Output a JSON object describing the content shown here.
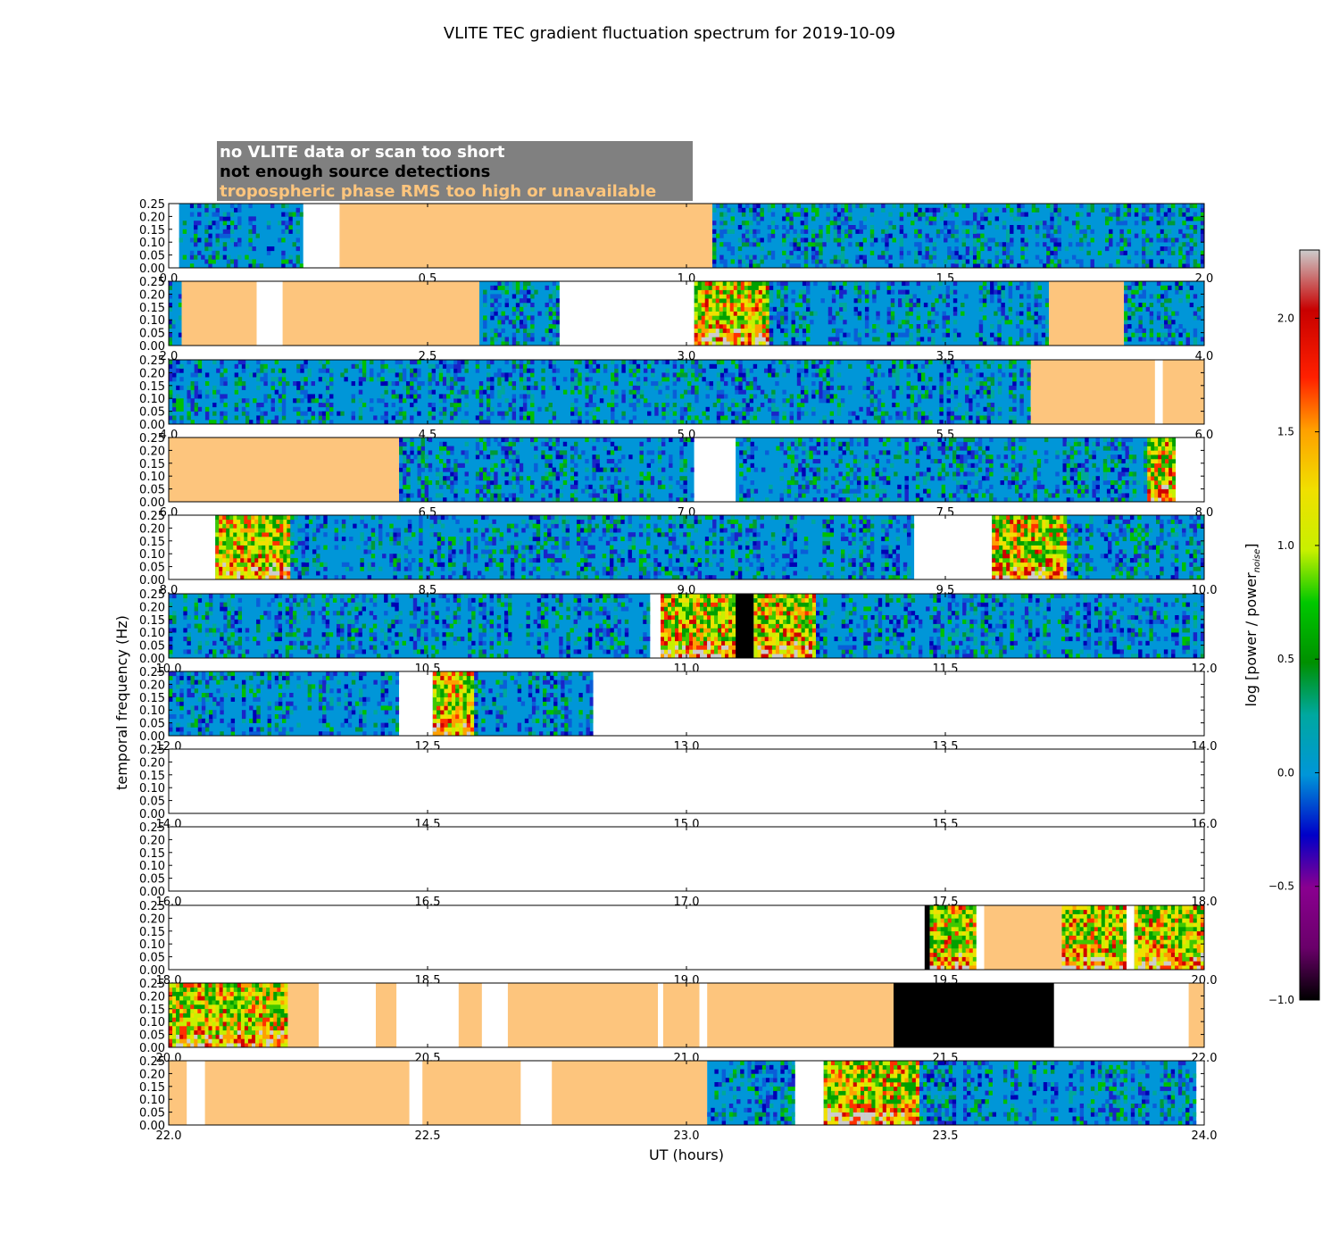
{
  "chart_data": {
    "type": "heatmap",
    "title": "VLITE TEC gradient fluctuation spectrum for 2019-10-09",
    "xlabel": "UT (hours)",
    "ylabel": "temporal frequency (Hz)",
    "ylim": [
      0,
      0.25
    ],
    "yticks": [
      "0.00",
      "0.05",
      "0.10",
      "0.15",
      "0.20",
      "0.25"
    ],
    "legend": [
      {
        "label": "no VLITE data or scan too short",
        "color": "#ffffff"
      },
      {
        "label": "not enough source detections",
        "color": "#000000"
      },
      {
        "label": "tropospheric phase RMS too high or unavailable",
        "color": "#fdc57d"
      }
    ],
    "colorbar": {
      "label": "log [power / power",
      "label_sub": "noise",
      "label_end": "]",
      "range": [
        -1.0,
        2.3
      ],
      "ticks": [
        "−1.0",
        "−0.5",
        "0.0",
        "0.5",
        "1.0",
        "1.5",
        "2.0"
      ],
      "tick_values": [
        -1.0,
        -0.5,
        0.0,
        0.5,
        1.0,
        1.5,
        2.0
      ]
    },
    "colors": {
      "baseline": "#0096d8",
      "trop": "#fdc57d",
      "nodet": "#000000",
      "nodata": "#ffffff",
      "saturated": "#cccccc"
    },
    "rows": [
      {
        "xlim": [
          0,
          2
        ],
        "xticks": [
          "0.0",
          "0.5",
          "1.0",
          "1.5",
          "2.0"
        ],
        "segments": [
          {
            "start": 0.02,
            "end": 0.26,
            "kind": "noise"
          },
          {
            "start": 0.26,
            "end": 0.33,
            "kind": "nodata"
          },
          {
            "start": 0.33,
            "end": 1.05,
            "kind": "trop"
          },
          {
            "start": 1.05,
            "end": 2.0,
            "kind": "noise"
          }
        ]
      },
      {
        "xlim": [
          2,
          4
        ],
        "xticks": [
          "2.0",
          "2.5",
          "3.0",
          "3.5",
          "4.0"
        ],
        "segments": [
          {
            "start": 2.0,
            "end": 2.025,
            "kind": "noise"
          },
          {
            "start": 2.025,
            "end": 2.17,
            "kind": "trop"
          },
          {
            "start": 2.17,
            "end": 2.22,
            "kind": "nodata"
          },
          {
            "start": 2.22,
            "end": 2.6,
            "kind": "trop"
          },
          {
            "start": 2.6,
            "end": 2.755,
            "kind": "noise"
          },
          {
            "start": 2.755,
            "end": 3.015,
            "kind": "nodata"
          },
          {
            "start": 3.015,
            "end": 3.16,
            "kind": "active"
          },
          {
            "start": 3.16,
            "end": 3.7,
            "kind": "noise"
          },
          {
            "start": 3.7,
            "end": 3.845,
            "kind": "trop"
          },
          {
            "start": 3.845,
            "end": 4.0,
            "kind": "noise"
          }
        ]
      },
      {
        "xlim": [
          4,
          6
        ],
        "xticks": [
          "4.0",
          "4.5",
          "5.0",
          "5.5",
          "6.0"
        ],
        "segments": [
          {
            "start": 4.0,
            "end": 5.665,
            "kind": "noise"
          },
          {
            "start": 5.665,
            "end": 5.905,
            "kind": "trop"
          },
          {
            "start": 5.905,
            "end": 5.92,
            "kind": "nodata"
          },
          {
            "start": 5.92,
            "end": 6.0,
            "kind": "trop"
          }
        ]
      },
      {
        "xlim": [
          6,
          8
        ],
        "xticks": [
          "6.0",
          "6.5",
          "7.0",
          "7.5",
          "8.0"
        ],
        "segments": [
          {
            "start": 6.0,
            "end": 6.445,
            "kind": "trop"
          },
          {
            "start": 6.445,
            "end": 7.015,
            "kind": "noise"
          },
          {
            "start": 7.015,
            "end": 7.095,
            "kind": "nodata"
          },
          {
            "start": 7.095,
            "end": 7.89,
            "kind": "noise"
          },
          {
            "start": 7.89,
            "end": 7.945,
            "kind": "active"
          },
          {
            "start": 7.945,
            "end": 8.0,
            "kind": "nodata"
          }
        ]
      },
      {
        "xlim": [
          8,
          10
        ],
        "xticks": [
          "8.0",
          "8.5",
          "9.0",
          "9.5",
          "10.0"
        ],
        "segments": [
          {
            "start": 8.0,
            "end": 8.09,
            "kind": "nodata"
          },
          {
            "start": 8.09,
            "end": 8.235,
            "kind": "active"
          },
          {
            "start": 8.235,
            "end": 9.44,
            "kind": "noise"
          },
          {
            "start": 9.44,
            "end": 9.59,
            "kind": "nodata"
          },
          {
            "start": 9.59,
            "end": 9.735,
            "kind": "active"
          },
          {
            "start": 9.735,
            "end": 10.0,
            "kind": "noise"
          }
        ]
      },
      {
        "xlim": [
          10,
          12
        ],
        "xticks": [
          "10.0",
          "10.5",
          "11.0",
          "11.5",
          "12.0"
        ],
        "segments": [
          {
            "start": 10.0,
            "end": 10.93,
            "kind": "noise"
          },
          {
            "start": 10.93,
            "end": 10.95,
            "kind": "nodata"
          },
          {
            "start": 10.95,
            "end": 11.095,
            "kind": "active"
          },
          {
            "start": 11.095,
            "end": 11.13,
            "kind": "nodet"
          },
          {
            "start": 11.13,
            "end": 11.25,
            "kind": "active"
          },
          {
            "start": 11.25,
            "end": 12.0,
            "kind": "noise"
          }
        ]
      },
      {
        "xlim": [
          12,
          14
        ],
        "xticks": [
          "12.0",
          "12.5",
          "13.0",
          "13.5",
          "14.0"
        ],
        "segments": [
          {
            "start": 12.0,
            "end": 12.445,
            "kind": "noise"
          },
          {
            "start": 12.445,
            "end": 12.51,
            "kind": "nodata"
          },
          {
            "start": 12.51,
            "end": 12.59,
            "kind": "active"
          },
          {
            "start": 12.59,
            "end": 12.82,
            "kind": "noise"
          },
          {
            "start": 12.82,
            "end": 14.0,
            "kind": "nodata"
          }
        ]
      },
      {
        "xlim": [
          14,
          16
        ],
        "xticks": [
          "14.0",
          "14.5",
          "15.0",
          "15.5",
          "16.0"
        ],
        "segments": [
          {
            "start": 14.0,
            "end": 16.0,
            "kind": "nodata"
          }
        ]
      },
      {
        "xlim": [
          16,
          18
        ],
        "xticks": [
          "16.0",
          "16.5",
          "17.0",
          "17.5",
          "18.0"
        ],
        "segments": [
          {
            "start": 16.0,
            "end": 18.0,
            "kind": "nodata"
          }
        ]
      },
      {
        "xlim": [
          18,
          20
        ],
        "xticks": [
          "18.0",
          "18.5",
          "19.0",
          "19.5",
          "20.0"
        ],
        "segments": [
          {
            "start": 18.0,
            "end": 19.46,
            "kind": "nodata"
          },
          {
            "start": 19.46,
            "end": 19.47,
            "kind": "nodet"
          },
          {
            "start": 19.47,
            "end": 19.56,
            "kind": "active"
          },
          {
            "start": 19.56,
            "end": 19.575,
            "kind": "nodata"
          },
          {
            "start": 19.575,
            "end": 19.725,
            "kind": "trop"
          },
          {
            "start": 19.725,
            "end": 19.85,
            "kind": "active"
          },
          {
            "start": 19.85,
            "end": 19.865,
            "kind": "nodata"
          },
          {
            "start": 19.865,
            "end": 20.0,
            "kind": "active"
          }
        ]
      },
      {
        "xlim": [
          20,
          22
        ],
        "xticks": [
          "20.0",
          "20.5",
          "21.0",
          "21.5",
          "22.0"
        ],
        "segments": [
          {
            "start": 20.0,
            "end": 20.23,
            "kind": "active"
          },
          {
            "start": 20.23,
            "end": 20.29,
            "kind": "trop"
          },
          {
            "start": 20.29,
            "end": 20.4,
            "kind": "nodata"
          },
          {
            "start": 20.4,
            "end": 20.44,
            "kind": "trop"
          },
          {
            "start": 20.44,
            "end": 20.56,
            "kind": "nodata"
          },
          {
            "start": 20.56,
            "end": 20.605,
            "kind": "trop"
          },
          {
            "start": 20.605,
            "end": 20.655,
            "kind": "nodata"
          },
          {
            "start": 20.655,
            "end": 20.945,
            "kind": "trop"
          },
          {
            "start": 20.945,
            "end": 20.955,
            "kind": "nodata"
          },
          {
            "start": 20.955,
            "end": 21.025,
            "kind": "trop"
          },
          {
            "start": 21.025,
            "end": 21.04,
            "kind": "nodata"
          },
          {
            "start": 21.04,
            "end": 21.4,
            "kind": "trop"
          },
          {
            "start": 21.4,
            "end": 21.71,
            "kind": "nodet"
          },
          {
            "start": 21.71,
            "end": 21.97,
            "kind": "nodata"
          },
          {
            "start": 21.97,
            "end": 22.0,
            "kind": "trop"
          }
        ]
      },
      {
        "xlim": [
          22,
          24
        ],
        "xticks": [
          "22.0",
          "22.5",
          "23.0",
          "23.5",
          "24.0"
        ],
        "segments": [
          {
            "start": 22.0,
            "end": 22.035,
            "kind": "trop"
          },
          {
            "start": 22.035,
            "end": 22.07,
            "kind": "nodata"
          },
          {
            "start": 22.07,
            "end": 22.465,
            "kind": "trop"
          },
          {
            "start": 22.465,
            "end": 22.49,
            "kind": "nodata"
          },
          {
            "start": 22.49,
            "end": 22.68,
            "kind": "trop"
          },
          {
            "start": 22.68,
            "end": 22.74,
            "kind": "nodata"
          },
          {
            "start": 22.74,
            "end": 23.04,
            "kind": "trop"
          },
          {
            "start": 23.04,
            "end": 23.21,
            "kind": "noise"
          },
          {
            "start": 23.21,
            "end": 23.265,
            "kind": "nodata"
          },
          {
            "start": 23.265,
            "end": 23.45,
            "kind": "active"
          },
          {
            "start": 23.45,
            "end": 23.985,
            "kind": "noise"
          },
          {
            "start": 23.985,
            "end": 24.0,
            "kind": "nodata"
          }
        ]
      }
    ]
  }
}
